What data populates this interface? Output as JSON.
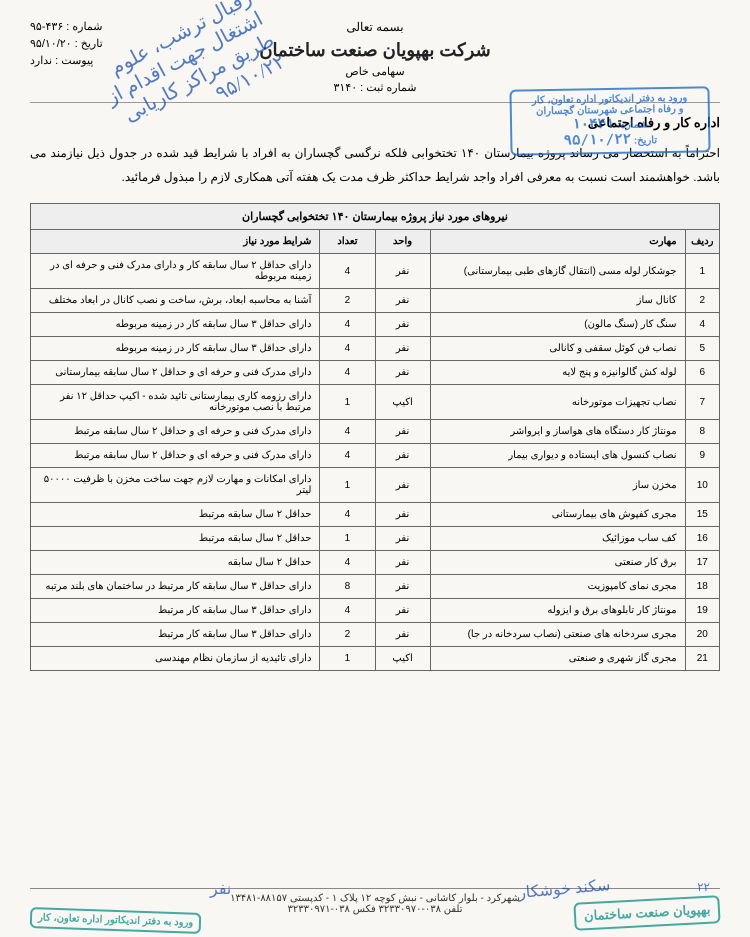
{
  "header": {
    "basmala": "بسمه تعالی",
    "company_name": "شرکت بهپویان صنعت ساختمان",
    "company_type": "سهامی خاص",
    "reg_no_label": "شماره ثبت :",
    "reg_no": "۳۱۴۰",
    "doc_no_label": "شماره :",
    "doc_no": "۴۳۶-۹۵",
    "date_label": "تاریخ :",
    "date": "۹۵/۱۰/۲۰",
    "attach_label": "پیوست :",
    "attach": "ندارد"
  },
  "stamp_top": {
    "line1": "ورود به دفتر اندیکاتور اداره تعاون، کار",
    "line2": "و رفاه اجتماعی شهرستان گچساران",
    "num_label": "شماره:",
    "num": "۱۰۴۴۱",
    "date_label": "تاریخ:",
    "date": "۹۵/۱۰/۲۲"
  },
  "handwriting": {
    "text": "رقبال\nترشب، علوم اشتغال جهت اقدام\nاز طریق مراکز کاریابی\n۹۵/۱۰/۲۲"
  },
  "addressee": "اداره کار و رفاه اجتماعی",
  "body_text": "احتراماً به استحضار می رساند پروژه بیمارستان ۱۴۰ تختخوابی فلکه نرگسی گچساران به افراد با شرایط قید شده در جدول ذیل نیازمند می باشد. خواهشمند است نسبت به معرفی افراد واجد شرایط حداکثر ظرف مدت یک هفته آتی همکاری لازم را مبذول فرمائید.",
  "table": {
    "caption": "نیروهای مورد نیاز پروژه بیمارستان ۱۴۰ تختخوابی گچساران",
    "headers": {
      "row": "ردیف",
      "skill": "مهارت",
      "unit": "واحد",
      "qty": "تعداد",
      "cond": "شرایط مورد نیاز"
    },
    "rows": [
      {
        "row": "1",
        "skill": "جوشکار لوله مسی (انتقال گازهای طبی بیمارستانی)",
        "unit": "نفر",
        "qty": "4",
        "cond": "دارای حداقل ۲ سال سابقه کار و دارای مدرک فنی و حرفه ای در زمینه مربوطه"
      },
      {
        "row": "2",
        "skill": "کانال ساز",
        "unit": "نفر",
        "qty": "2",
        "cond": "آشنا به محاسبه ابعاد، برش، ساخت و نصب کانال در ابعاد مختلف"
      },
      {
        "row": "4",
        "skill": "سنگ کار (سنگ مالون)",
        "unit": "نفر",
        "qty": "4",
        "cond": "دارای حداقل ۳ سال سابقه کار در زمینه مربوطه"
      },
      {
        "row": "5",
        "skill": "نصاب فن کوئل سقفی و کانالی",
        "unit": "نفر",
        "qty": "4",
        "cond": "دارای حداقل ۳ سال سابقه کار در زمینه مربوطه"
      },
      {
        "row": "6",
        "skill": "لوله کش گالوانیزه و پنج لایه",
        "unit": "نفر",
        "qty": "4",
        "cond": "دارای مدرک فنی و حرفه ای و حداقل ۲ سال سابقه بیمارستانی"
      },
      {
        "row": "7",
        "skill": "نصاب تجهیزات موتورخانه",
        "unit": "اکیپ",
        "qty": "1",
        "cond": "دارای رزومه کاری بیمارستانی تائید شده - اکیپ حداقل ۱۲ نفر مرتبط با نصب موتورخانه"
      },
      {
        "row": "8",
        "skill": "مونتاژ کار دستگاه های هواساز و ایرواشر",
        "unit": "نفر",
        "qty": "4",
        "cond": "دارای مدرک فنی و حرفه ای و حداقل ۲ سال سابقه مرتبط"
      },
      {
        "row": "9",
        "skill": "نصاب کنسول های ایستاده و دیواری بیمار",
        "unit": "نفر",
        "qty": "4",
        "cond": "دارای مدرک فنی و حرفه ای و حداقل ۲ سال سابقه مرتبط"
      },
      {
        "row": "10",
        "skill": "مخزن ساز",
        "unit": "نفر",
        "qty": "1",
        "cond": "دارای امکانات و مهارت لازم جهت ساخت مخزن با ظرفیت ۵۰۰۰۰ لیتر"
      },
      {
        "row": "15",
        "skill": "مجری کفپوش های بیمارستانی",
        "unit": "نفر",
        "qty": "4",
        "cond": "حداقل ۲ سال سابقه مرتبط"
      },
      {
        "row": "16",
        "skill": "کف ساب موزائیک",
        "unit": "نفر",
        "qty": "1",
        "cond": "حداقل ۲ سال سابقه مرتبط"
      },
      {
        "row": "17",
        "skill": "برق کار صنعتی",
        "unit": "نفر",
        "qty": "4",
        "cond": "حداقل ۲ سال سابقه"
      },
      {
        "row": "18",
        "skill": "مجری نمای کامپوزیت",
        "unit": "نفر",
        "qty": "8",
        "cond": "دارای حداقل ۳ سال سابقه کار مرتبط در ساختمان های بلند مرتبه"
      },
      {
        "row": "19",
        "skill": "مونتاژ کار تابلوهای برق و ایزوله",
        "unit": "نفر",
        "qty": "4",
        "cond": "دارای حداقل ۳ سال سابقه کار مرتبط"
      },
      {
        "row": "20",
        "skill": "مجری سردخانه های صنعتی (نصاب سردخانه در جا)",
        "unit": "نفر",
        "qty": "2",
        "cond": "دارای حداقل ۳ سال سابقه کار مرتبط"
      },
      {
        "row": "21",
        "skill": "مجری گاز شهری و صنعتی",
        "unit": "اکیپ",
        "qty": "1",
        "cond": "دارای تائیدیه از سازمان نظام مهندسی"
      }
    ]
  },
  "footer": {
    "address": "شهرکرد - بلوار کاشانی - نبش کوچه ۱۲ پلاک ۱ - کدپستی ۸۸۱۵۷-۱۳۴۸۱",
    "tel": "تلفن ۰۳۸-۳۲۳۳۰۹۷۰  فکس ۰۳۸-۳۲۳۳۰۹۷۱"
  },
  "stamp_bl": "بهپویان صنعت ساختمان",
  "stamp_br": "ورود به دفتر اندیکاتور اداره تعاون، کار",
  "small_hand": "۲۲",
  "sig_right": "سکند خوشکار",
  "sig_left": "نفر"
}
